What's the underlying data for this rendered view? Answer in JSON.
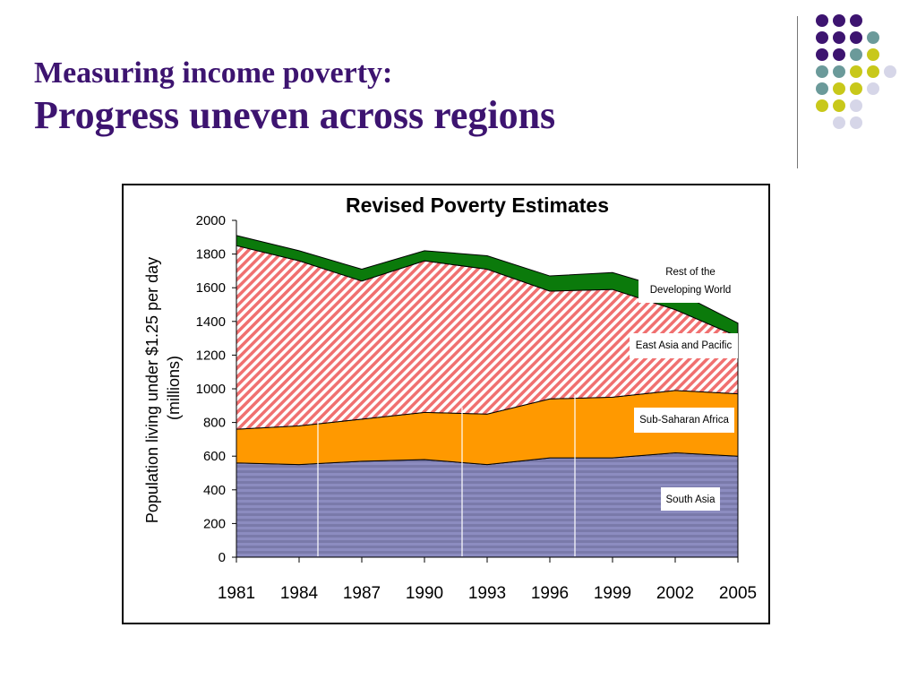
{
  "slide": {
    "title_line1": "Measuring income poverty:",
    "title_line2": "Progress uneven across regions"
  },
  "colors": {
    "title": "#3d1470",
    "dot_purple": "#3d1470",
    "dot_teal": "#6b9a9a",
    "dot_yellow": "#c8c81a",
    "dot_lavender": "#d6d6e8",
    "south_asia": "#7a7aaa",
    "sub_saharan_africa": "#ff9900",
    "east_asia_pacific": "#f07070",
    "rest_of_developing_world": "#0b7a0b"
  },
  "chart_data": {
    "type": "area",
    "title": "Revised Poverty Estimates",
    "ylabel": "Population living under $1.25 per day (millions)",
    "xlabel": "",
    "x": [
      "1981",
      "1984",
      "1987",
      "1990",
      "1993",
      "1996",
      "1999",
      "2002",
      "2005"
    ],
    "ylim": [
      0,
      2000
    ],
    "yticks": [
      0,
      200,
      400,
      600,
      800,
      1000,
      1200,
      1400,
      1600,
      1800,
      2000
    ],
    "stacked": true,
    "grid": false,
    "series": [
      {
        "name": "South Asia",
        "values": [
          560,
          550,
          570,
          580,
          550,
          590,
          590,
          620,
          600
        ]
      },
      {
        "name": "Sub-Saharan Africa",
        "values": [
          200,
          230,
          250,
          280,
          300,
          350,
          360,
          370,
          370
        ]
      },
      {
        "name": "East Asia and Pacific",
        "values": [
          1090,
          980,
          820,
          900,
          860,
          640,
          640,
          480,
          340
        ]
      },
      {
        "name": "Rest of the Developing World",
        "values": [
          60,
          60,
          70,
          60,
          80,
          90,
          100,
          110,
          80
        ]
      }
    ],
    "labels": [
      {
        "text": "South Asia"
      },
      {
        "text": "Sub-Saharan Africa"
      },
      {
        "text": "East Asia and Pacific"
      },
      {
        "line1": "Rest of the",
        "line2": "Developing World"
      }
    ]
  }
}
